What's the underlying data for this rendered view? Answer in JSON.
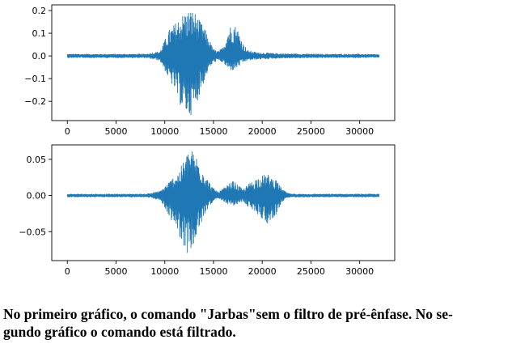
{
  "chart_data": [
    {
      "type": "line",
      "title": "",
      "xlabel": "",
      "ylabel": "",
      "xlim": [
        -1600,
        33600
      ],
      "ylim": [
        -0.285,
        0.225
      ],
      "x_ticks": [
        0,
        5000,
        10000,
        15000,
        20000,
        25000,
        30000
      ],
      "x_tick_labels": [
        "0",
        "5000",
        "10000",
        "15000",
        "20000",
        "25000",
        "30000"
      ],
      "y_ticks": [
        -0.2,
        -0.1,
        0.0,
        0.1,
        0.2
      ],
      "y_tick_labels": [
        "−0.2",
        "−0.1",
        "0.0",
        "0.1",
        "0.2"
      ],
      "grid": false,
      "color": "#1f77b4",
      "series": [
        {
          "x": [
            0,
            4000,
            8000,
            9500,
            10500,
            11000,
            11500,
            12000,
            12500,
            13000,
            13500,
            14000,
            14500,
            15000,
            15500,
            16000,
            16500,
            17000,
            17500,
            18000,
            18500,
            19500,
            22000,
            26000,
            30000,
            32000
          ],
          "upper": [
            0.008,
            0.008,
            0.008,
            0.02,
            0.12,
            0.14,
            0.17,
            0.19,
            0.205,
            0.2,
            0.16,
            0.13,
            0.08,
            0.03,
            0.02,
            0.04,
            0.12,
            0.15,
            0.12,
            0.06,
            0.025,
            0.015,
            0.01,
            0.008,
            0.008,
            0.006
          ],
          "lower": [
            -0.008,
            -0.008,
            -0.008,
            -0.02,
            -0.11,
            -0.15,
            -0.21,
            -0.25,
            -0.27,
            -0.24,
            -0.18,
            -0.12,
            -0.06,
            -0.03,
            -0.02,
            -0.03,
            -0.06,
            -0.065,
            -0.05,
            -0.03,
            -0.02,
            -0.015,
            -0.01,
            -0.008,
            -0.008,
            -0.006
          ]
        }
      ]
    },
    {
      "type": "line",
      "title": "",
      "xlabel": "",
      "ylabel": "",
      "xlim": [
        -1600,
        33600
      ],
      "ylim": [
        -0.09,
        0.07
      ],
      "x_ticks": [
        0,
        5000,
        10000,
        15000,
        20000,
        25000,
        30000
      ],
      "x_tick_labels": [
        "0",
        "5000",
        "10000",
        "15000",
        "20000",
        "25000",
        "30000"
      ],
      "y_ticks": [
        -0.05,
        0.0,
        0.05
      ],
      "y_tick_labels": [
        "−0.05",
        "0.00",
        "0.05"
      ],
      "grid": false,
      "color": "#1f77b4",
      "series": [
        {
          "x": [
            0,
            4000,
            8000,
            9500,
            10500,
            11500,
            12000,
            12500,
            13000,
            13500,
            14000,
            14500,
            15000,
            15500,
            16500,
            17000,
            17500,
            18000,
            18500,
            19500,
            20500,
            21500,
            22000,
            22500,
            23000,
            26000,
            30000,
            32000
          ],
          "upper": [
            0.002,
            0.002,
            0.002,
            0.006,
            0.02,
            0.035,
            0.05,
            0.065,
            0.06,
            0.05,
            0.035,
            0.02,
            0.01,
            0.005,
            0.015,
            0.02,
            0.015,
            0.008,
            0.015,
            0.025,
            0.03,
            0.02,
            0.01,
            0.004,
            0.002,
            0.002,
            0.002,
            0.002
          ],
          "lower": [
            -0.002,
            -0.002,
            -0.002,
            -0.006,
            -0.03,
            -0.055,
            -0.075,
            -0.082,
            -0.07,
            -0.05,
            -0.03,
            -0.015,
            -0.008,
            -0.005,
            -0.012,
            -0.015,
            -0.012,
            -0.008,
            -0.015,
            -0.025,
            -0.04,
            -0.025,
            -0.01,
            -0.004,
            -0.002,
            -0.002,
            -0.002,
            -0.002
          ]
        }
      ]
    }
  ],
  "caption": {
    "line1": "No primeiro gráfico, o comando \"Jarbas\"sem o filtro de pré-ênfase. No se-",
    "line2": "gundo gráfico o comando está filtrado."
  }
}
